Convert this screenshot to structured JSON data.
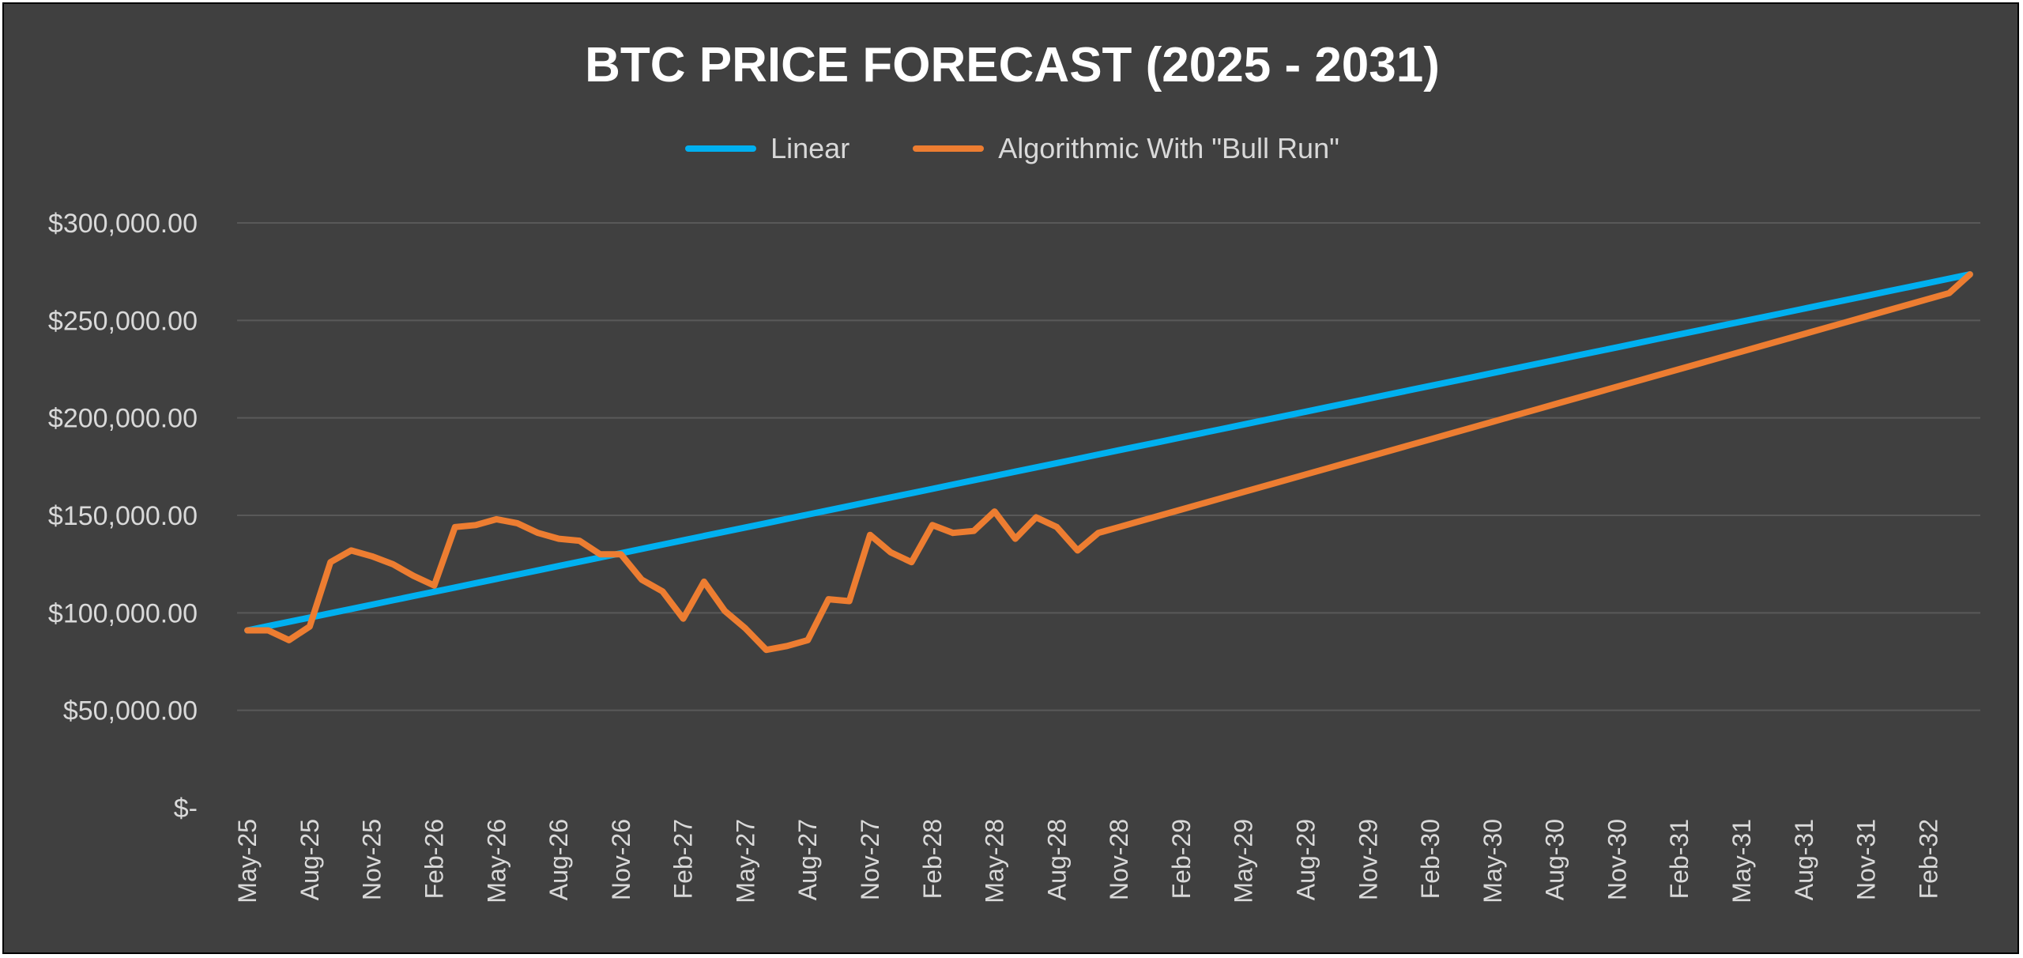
{
  "chart_data": {
    "type": "line",
    "title": "BTC PRICE FORECAST (2025 - 2031)",
    "xlabel": "",
    "ylabel": "",
    "ylim": [
      0,
      300000
    ],
    "yticks": [
      {
        "value": 300000,
        "label": "$300,000.00"
      },
      {
        "value": 250000,
        "label": "$250,000.00"
      },
      {
        "value": 200000,
        "label": "$200,000.00"
      },
      {
        "value": 150000,
        "label": "$150,000.00"
      },
      {
        "value": 100000,
        "label": "$100,000.00"
      },
      {
        "value": 50000,
        "label": "$50,000.00"
      },
      {
        "value": 0,
        "label": "$-"
      }
    ],
    "x": [
      "May-25",
      "Jun-25",
      "Jul-25",
      "Aug-25",
      "Sep-25",
      "Oct-25",
      "Nov-25",
      "Dec-25",
      "Jan-26",
      "Feb-26",
      "Mar-26",
      "Apr-26",
      "May-26",
      "Jun-26",
      "Jul-26",
      "Aug-26",
      "Sep-26",
      "Oct-26",
      "Nov-26",
      "Dec-26",
      "Jan-27",
      "Feb-27",
      "Mar-27",
      "Apr-27",
      "May-27",
      "Jun-27",
      "Jul-27",
      "Aug-27",
      "Sep-27",
      "Oct-27",
      "Nov-27",
      "Dec-27",
      "Jan-28",
      "Feb-28",
      "Mar-28",
      "Apr-28",
      "May-28",
      "Jun-28",
      "Jul-28",
      "Aug-28",
      "Sep-28",
      "Oct-28",
      "Nov-28",
      "Dec-28",
      "Jan-29",
      "Feb-29",
      "Mar-29",
      "Apr-29",
      "May-29",
      "Jun-29",
      "Jul-29",
      "Aug-29",
      "Sep-29",
      "Oct-29",
      "Nov-29",
      "Dec-29",
      "Jan-30",
      "Feb-30",
      "Mar-30",
      "Apr-30",
      "May-30",
      "Jun-30",
      "Jul-30",
      "Aug-30",
      "Sep-30",
      "Oct-30",
      "Nov-30",
      "Dec-30",
      "Jan-31",
      "Feb-31",
      "Mar-31",
      "Apr-31",
      "May-31",
      "Jun-31",
      "Jul-31",
      "Aug-31",
      "Sep-31",
      "Oct-31",
      "Nov-31",
      "Dec-31",
      "Jan-32",
      "Feb-32",
      "Mar-32",
      "Apr-32"
    ],
    "xtick_labels": [
      "May-25",
      "Aug-25",
      "Nov-25",
      "Feb-26",
      "May-26",
      "Aug-26",
      "Nov-26",
      "Feb-27",
      "May-27",
      "Aug-27",
      "Nov-27",
      "Feb-28",
      "May-28",
      "Aug-28",
      "Nov-28",
      "Feb-29",
      "May-29",
      "Aug-29",
      "Nov-29",
      "Feb-30",
      "May-30",
      "Aug-30",
      "Nov-30",
      "Feb-31",
      "May-31",
      "Aug-31",
      "Nov-31",
      "Feb-32"
    ],
    "series": [
      {
        "name": "Linear",
        "color": "#00b0f0",
        "values": [
          91000,
          93200,
          95400,
          97600,
          99800,
          102000,
          104200,
          106400,
          108600,
          110800,
          113000,
          115200,
          117400,
          119600,
          121800,
          124000,
          126200,
          128400,
          130600,
          132800,
          135000,
          137200,
          139400,
          141600,
          143800,
          146000,
          148200,
          150400,
          152600,
          154800,
          157000,
          159200,
          161400,
          163600,
          165800,
          168000,
          170200,
          172400,
          174600,
          176800,
          179000,
          181200,
          183400,
          185600,
          187800,
          190000,
          192200,
          194400,
          196600,
          198800,
          201000,
          203200,
          205400,
          207600,
          209800,
          212000,
          214200,
          216400,
          218600,
          220800,
          223000,
          225200,
          227400,
          229600,
          231800,
          234000,
          236200,
          238400,
          240600,
          242800,
          245000,
          247200,
          249400,
          251600,
          253800,
          256000,
          258200,
          260400,
          262600,
          264800,
          267000,
          269200,
          271400,
          273600
        ]
      },
      {
        "name": "Algorithmic With \"Bull Run\"",
        "color": "#ed7d31",
        "values": [
          91000,
          91000,
          86000,
          93000,
          126000,
          132000,
          129000,
          125000,
          119000,
          114000,
          144000,
          145000,
          148000,
          146000,
          141000,
          138000,
          137000,
          130000,
          130000,
          117000,
          111000,
          97000,
          116000,
          101000,
          92000,
          81000,
          83000,
          86000,
          107000,
          106000,
          140000,
          131000,
          126000,
          145000,
          141000,
          142000,
          152000,
          138000,
          149000,
          144000,
          132000,
          141000,
          144000,
          147000,
          150000,
          153000,
          156000,
          159000,
          162000,
          165000,
          168000,
          171000,
          174000,
          177000,
          180000,
          183000,
          186000,
          189000,
          192000,
          195000,
          198000,
          201000,
          204000,
          207000,
          210000,
          213000,
          216000,
          219000,
          222000,
          225000,
          228000,
          231000,
          234000,
          237000,
          240000,
          243000,
          246000,
          249000,
          252000,
          255000,
          258000,
          261000,
          264000,
          273600
        ]
      }
    ],
    "grid": true,
    "legend_position": "top-center"
  }
}
